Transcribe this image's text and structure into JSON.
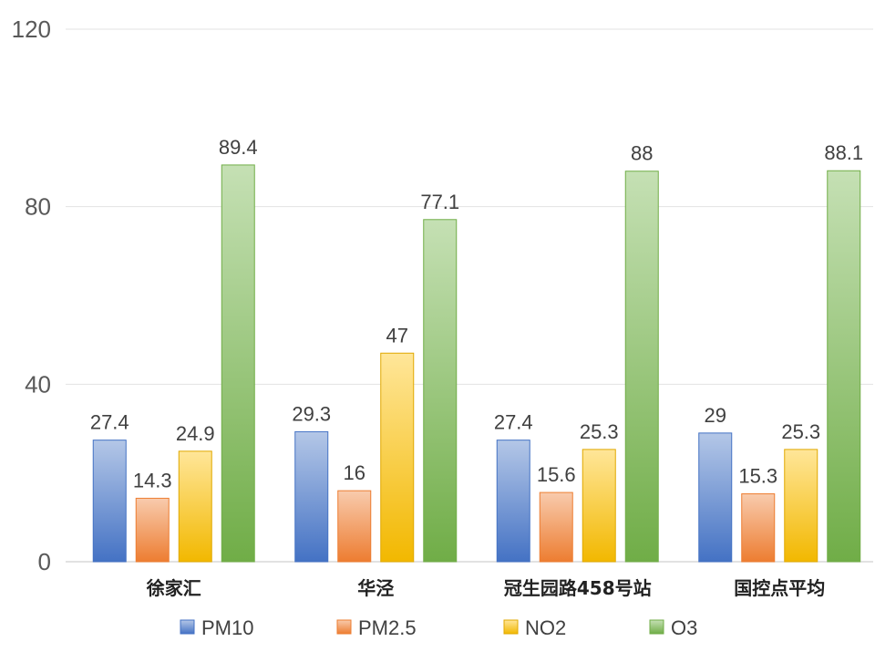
{
  "chart_data": {
    "type": "bar",
    "title": "",
    "xlabel": "",
    "ylabel": "",
    "ylim": [
      0,
      120
    ],
    "yticks": [
      0,
      40,
      80,
      120
    ],
    "grid": true,
    "legend_position": "bottom",
    "categories": [
      "徐家汇",
      "华泾",
      "冠生园路458号站",
      "国控点平均"
    ],
    "series": [
      {
        "name": "PM10",
        "values": [
          27.4,
          29.3,
          27.4,
          29
        ],
        "color_top": "#b4c7e7",
        "color_bottom": "#4472c4",
        "stroke": "#4472c4"
      },
      {
        "name": "PM2.5",
        "values": [
          14.3,
          16,
          15.6,
          15.3
        ],
        "color_top": "#f8cbad",
        "color_bottom": "#ed7d31",
        "stroke": "#ed7d31"
      },
      {
        "name": "NO2",
        "values": [
          24.9,
          47,
          25.3,
          25.3
        ],
        "color_top": "#ffe699",
        "color_bottom": "#f2b800",
        "stroke": "#e0a800"
      },
      {
        "name": "O3",
        "values": [
          89.4,
          77.1,
          88,
          88.1
        ],
        "color_top": "#c5e0b4",
        "color_bottom": "#70ad47",
        "stroke": "#70ad47"
      }
    ],
    "data_labels": [
      [
        "27.4",
        "29.3",
        "27.4",
        "29"
      ],
      [
        "14.3",
        "16",
        "15.6",
        "15.3"
      ],
      [
        "24.9",
        "47",
        "25.3",
        "25.3"
      ],
      [
        "89.4",
        "77.1",
        "88",
        "88.1"
      ]
    ],
    "ytick_labels": [
      "0",
      "40",
      "80",
      "120"
    ]
  }
}
